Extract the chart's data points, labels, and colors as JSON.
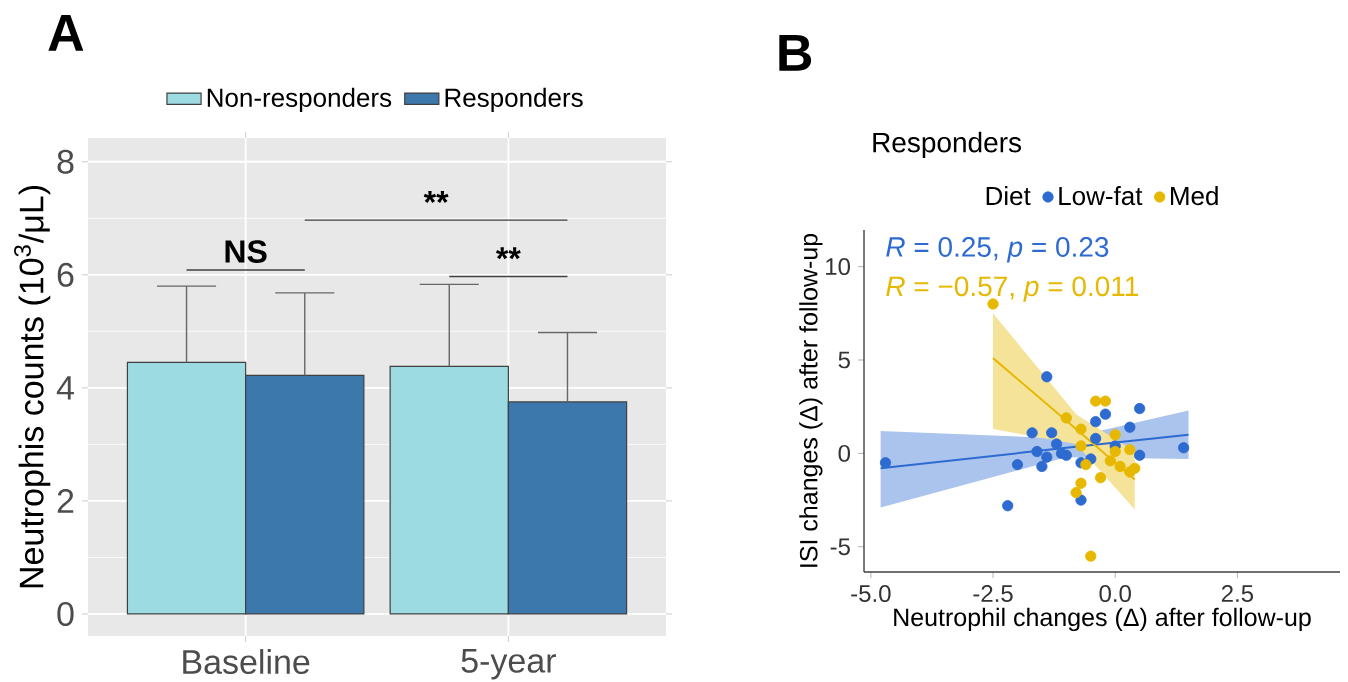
{
  "chart_data": [
    {
      "type": "bar",
      "title": "A",
      "ylabel": "Neutrophis counts (10$^{3}$/μL)",
      "categories": [
        "Baseline",
        "5-year"
      ],
      "ylim": [
        -0.39,
        8.42
      ],
      "yticks": [
        0,
        2,
        4,
        6,
        8
      ],
      "grid": true,
      "legend": "top",
      "annotations": [
        "NS",
        "**",
        "**"
      ],
      "series": [
        {
          "name": "Non-responders",
          "color": "#9ddbe3",
          "values": [
            4.45,
            4.38
          ],
          "errors": [
            [
              4.45,
              5.8
            ],
            [
              4.38,
              5.83
            ]
          ]
        },
        {
          "name": "Responders",
          "color": "#3d78ad",
          "values": [
            4.22,
            3.75
          ],
          "errors": [
            [
              4.22,
              5.68
            ],
            [
              3.75,
              4.98
            ]
          ]
        }
      ]
    },
    {
      "type": "scatter",
      "title": "B",
      "subtitle": "Responders",
      "legend_title": "Diet",
      "xlabel": "Neutrophil changes (Δ) after follow-up",
      "ylabel": "ISI changes (Δ) after follow-up",
      "xlim": [
        -5.14,
        4.6
      ],
      "ylim": [
        -6.35,
        11.96
      ],
      "xticks": [
        {
          "value": -5,
          "label": "-5.0"
        },
        {
          "value": -2.5,
          "label": "-2.5"
        },
        {
          "value": 0,
          "label": "0.0"
        },
        {
          "value": 2.5,
          "label": "2.5"
        }
      ],
      "yticks": [
        -5,
        0,
        5,
        10
      ],
      "legend": "top",
      "annotations": [
        "*R* = 0.25, *p* = 0.23",
        "*R* = −0.57, *p* = 0.011"
      ],
      "series": [
        {
          "name": "Low-fat",
          "type": "scatter",
          "marker": "circle",
          "color": "#2e6bd1",
          "x": [
            -4.7,
            -2.2,
            -2.0,
            -1.6,
            -1.5,
            -1.4,
            -1.1,
            -1.0,
            -0.7,
            -0.7,
            -0.5,
            -0.4,
            -0.2,
            0.3,
            0.5,
            0.5,
            1.4,
            -1.4,
            -1.7,
            -1.3,
            -1.2,
            -0.4,
            0.0
          ],
          "values": [
            -0.5,
            -2.8,
            -0.6,
            0.1,
            -0.7,
            -0.2,
            0.0,
            -0.1,
            -0.5,
            -2.5,
            -0.3,
            1.7,
            2.1,
            1.4,
            2.4,
            -0.1,
            0.3,
            4.1,
            1.1,
            1.1,
            0.5,
            0.8,
            0.4
          ]
        },
        {
          "name": "Med",
          "type": "scatter",
          "marker": "circle",
          "color": "#e7b800",
          "x": [
            -2.5,
            -1.0,
            -0.7,
            -0.7,
            -0.6,
            -0.7,
            -0.4,
            -0.2,
            -0.8,
            -0.5,
            0.0,
            0.0,
            -0.1,
            0.1,
            0.3,
            0.4,
            0.3,
            -0.3
          ],
          "values": [
            8.0,
            1.9,
            1.3,
            0.4,
            -0.6,
            -1.6,
            2.8,
            2.8,
            -2.1,
            -5.5,
            1.0,
            0.1,
            -0.4,
            -0.7,
            -1.0,
            -0.8,
            0.2,
            -1.3
          ]
        },
        {
          "type": "line",
          "marker": "none",
          "color": "#2e6bd1",
          "x": [
            -4.8,
            -1.0,
            1.5
          ],
          "values": [
            -0.8,
            0.3,
            1.0
          ],
          "lower": [
            -2.9,
            -0.2,
            -0.3
          ],
          "upper": [
            1.2,
            0.8,
            2.3
          ]
        },
        {
          "type": "line",
          "marker": "none",
          "color": "#e7b800",
          "x": [
            -2.5,
            -0.8,
            0.4
          ],
          "values": [
            5.1,
            1.3,
            -1.4
          ],
          "lower": [
            1.3,
            0.5,
            -3.0
          ],
          "upper": [
            7.5,
            2.1,
            0.1
          ]
        }
      ]
    }
  ]
}
